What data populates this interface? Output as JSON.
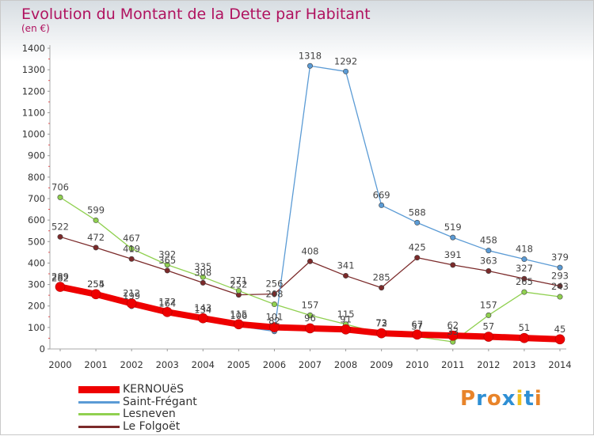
{
  "chart_data": {
    "type": "line",
    "title": "Evolution du Montant de la Dette par Habitant",
    "subtitle": "(en €)",
    "x": [
      "2000",
      "2001",
      "2002",
      "2003",
      "2004",
      "2005",
      "2006",
      "2007",
      "2008",
      "2009",
      "2010",
      "2011",
      "2012",
      "2013",
      "2014"
    ],
    "ylim": [
      0,
      1400
    ],
    "yticks": [
      0,
      100,
      200,
      300,
      400,
      500,
      600,
      700,
      800,
      900,
      1000,
      1100,
      1200,
      1300,
      1400
    ],
    "grid": false,
    "legend_position": "bottom-left",
    "series": [
      {
        "name": "KERNOUëS",
        "color": "#ee0000",
        "width": 8,
        "values": [
          289,
          255,
          212,
          172,
          143,
          115,
          101,
          96,
          91,
          73,
          67,
          62,
          57,
          51,
          45
        ]
      },
      {
        "name": "Saint-Frégant",
        "color": "#5b9bd5",
        "width": 1.3,
        "values": [
          282,
          254,
          199,
          164,
          134,
          106,
          82,
          1318,
          1292,
          669,
          588,
          519,
          458,
          418,
          379
        ]
      },
      {
        "name": "Lesneven",
        "color": "#90d050",
        "width": 1.3,
        "values": [
          706,
          599,
          467,
          392,
          335,
          271,
          208,
          157,
          115,
          72,
          57,
          33,
          157,
          265,
          243
        ]
      },
      {
        "name": "Le Folgoët",
        "color": "#7b2a2a",
        "width": 1.3,
        "values": [
          522,
          472,
          419,
          365,
          308,
          252,
          256,
          408,
          341,
          285,
          425,
          391,
          363,
          327,
          293
        ]
      }
    ]
  },
  "logo": {
    "text": "Proxiti",
    "colors": [
      "#e8842a",
      "#2e8fd4",
      "#e8842a",
      "#2e8fd4",
      "#f0c020",
      "#2e8fd4",
      "#e8842a"
    ]
  }
}
